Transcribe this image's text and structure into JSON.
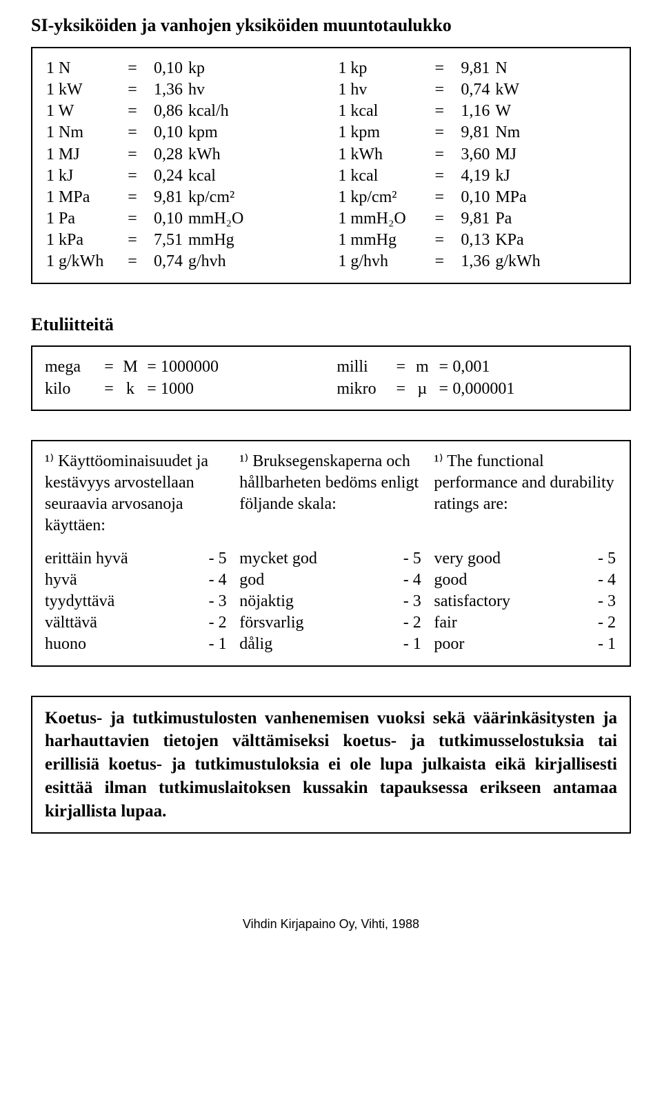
{
  "heading": "SI-yksiköiden ja vanhojen yksiköiden muuntotaulukko",
  "conv_left": [
    {
      "lhs": "1 N",
      "val": "0,10",
      "unit": "kp"
    },
    {
      "lhs": "1 kW",
      "val": "1,36",
      "unit": "hv"
    },
    {
      "lhs": "1 W",
      "val": "0,86",
      "unit": "kcal/h"
    },
    {
      "lhs": "1 Nm",
      "val": "0,10",
      "unit": "kpm"
    },
    {
      "lhs": "1 MJ",
      "val": "0,28",
      "unit": "kWh"
    },
    {
      "lhs": "1 kJ",
      "val": "0,24",
      "unit": "kcal"
    },
    {
      "lhs": "1 MPa",
      "val": "9,81",
      "unit": "kp/cm²"
    },
    {
      "lhs": "1 Pa",
      "val": "0,10",
      "unit": "mmH₂O"
    },
    {
      "lhs": "1 kPa",
      "val": "7,51",
      "unit": "mmHg"
    },
    {
      "lhs": "1 g/kWh",
      "val": "0,74",
      "unit": "g/hvh"
    }
  ],
  "conv_right": [
    {
      "lhs": "1 kp",
      "val": "9,81",
      "unit": "N"
    },
    {
      "lhs": "1 hv",
      "val": "0,74",
      "unit": "kW"
    },
    {
      "lhs": "1 kcal",
      "val": "1,16",
      "unit": "W"
    },
    {
      "lhs": "1 kpm",
      "val": "9,81",
      "unit": "Nm"
    },
    {
      "lhs": "1 kWh",
      "val": "3,60",
      "unit": "MJ"
    },
    {
      "lhs": "1 kcal",
      "val": "4,19",
      "unit": "kJ"
    },
    {
      "lhs": "1 kp/cm²",
      "val": "0,10",
      "unit": "MPa"
    },
    {
      "lhs": "1 mmH₂O",
      "val": "9,81",
      "unit": "Pa"
    },
    {
      "lhs": "1 mmHg",
      "val": "0,13",
      "unit": "KPa"
    },
    {
      "lhs": "1 g/hvh",
      "val": "1,36",
      "unit": "g/kWh"
    }
  ],
  "eq": "=",
  "prefixes_heading": "Etuliitteitä",
  "pref_left": [
    {
      "name": "mega",
      "sym": "M",
      "val": "1000000"
    },
    {
      "name": "kilo",
      "sym": "k",
      "val": "1000"
    }
  ],
  "pref_right": [
    {
      "name": "milli",
      "sym": "m",
      "val": "0,001"
    },
    {
      "name": "mikro",
      "sym": "µ",
      "val": "0,000001"
    }
  ],
  "ratings_intro": {
    "fi": "¹⁾ Käyttöominaisuudet ja kestävyys arvostellaan seuraavia arvosanoja käyttäen:",
    "sv": "¹⁾ Bruksegenskaperna och hållbarheten bedöms enligt följande skala:",
    "en": "¹⁾ The functional performance and durability ratings are:"
  },
  "ratings_scale": {
    "fi": [
      {
        "label": "erittäin hyvä",
        "v": "- 5"
      },
      {
        "label": "hyvä",
        "v": "- 4"
      },
      {
        "label": "tyydyttävä",
        "v": "- 3"
      },
      {
        "label": "välttävä",
        "v": "- 2"
      },
      {
        "label": "huono",
        "v": "- 1"
      }
    ],
    "sv": [
      {
        "label": "mycket god",
        "v": "- 5"
      },
      {
        "label": "god",
        "v": "- 4"
      },
      {
        "label": "nöjaktig",
        "v": "- 3"
      },
      {
        "label": "försvarlig",
        "v": "- 2"
      },
      {
        "label": "dålig",
        "v": "- 1"
      }
    ],
    "en": [
      {
        "label": "very good",
        "v": "- 5"
      },
      {
        "label": "good",
        "v": "- 4"
      },
      {
        "label": "satisfactory",
        "v": "- 3"
      },
      {
        "label": "fair",
        "v": "- 2"
      },
      {
        "label": "poor",
        "v": "- 1"
      }
    ]
  },
  "note": "Koetus- ja tutkimustulosten vanhenemisen vuoksi sekä väärinkäsitysten ja harhauttavien tietojen välttämiseksi koetus- ja tutkimusselostuksia tai erillisiä koetus- ja tutkimustuloksia ei ole lupa julkaista eikä kirjallisesti esittää ilman tutkimuslaitoksen kussakin tapauksessa erikseen antamaa kirjallista lupaa.",
  "footer": "Vihdin Kirjapaino Oy, Vihti, 1988"
}
